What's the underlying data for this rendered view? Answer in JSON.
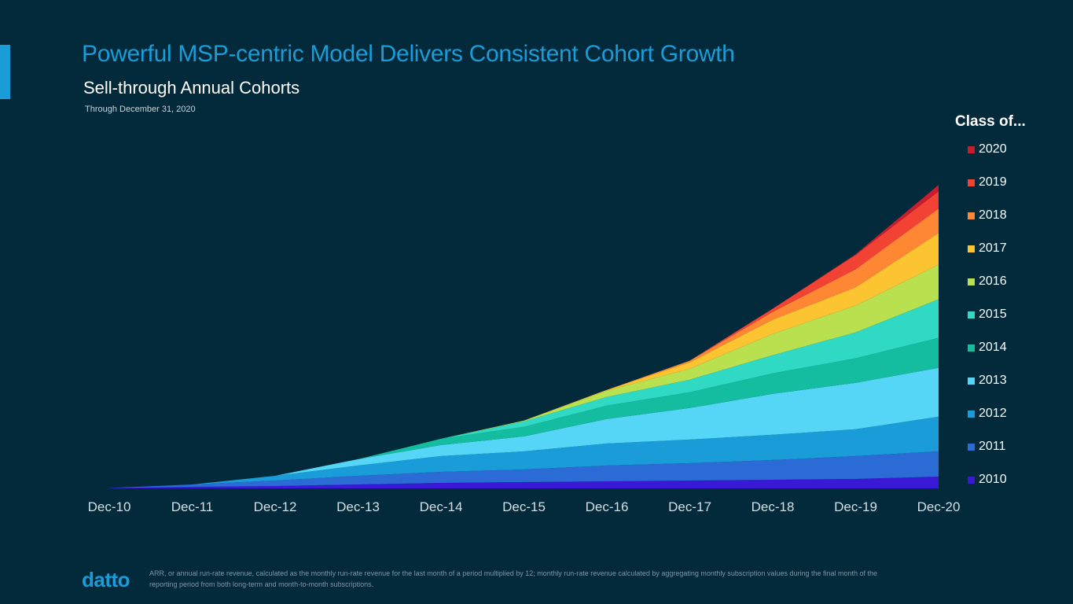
{
  "header": {
    "title": "Powerful MSP-centric Model Delivers Consistent Cohort Growth",
    "subtitle": "Sell-through Annual Cohorts",
    "as_of": "Through December 31, 2020"
  },
  "legend": {
    "title": "Class of...",
    "order": [
      "2020",
      "2019",
      "2018",
      "2017",
      "2016",
      "2015",
      "2014",
      "2013",
      "2012",
      "2011",
      "2010"
    ]
  },
  "colors": {
    "2010": "#3a19d6",
    "2011": "#2a6bd6",
    "2012": "#1a9cd8",
    "2013": "#56d6f7",
    "2014": "#14bd9f",
    "2015": "#2fd9c3",
    "2016": "#b8e04f",
    "2017": "#fdc432",
    "2018": "#fd8732",
    "2019": "#f24233",
    "2020": "#c91d2d",
    "background": "#022a3b",
    "accent": "#1a9cd8"
  },
  "chart_data": {
    "type": "area",
    "stacked": true,
    "categories": [
      "Dec-10",
      "Dec-11",
      "Dec-12",
      "Dec-13",
      "Dec-14",
      "Dec-15",
      "Dec-16",
      "Dec-17",
      "Dec-18",
      "Dec-19",
      "Dec-20"
    ],
    "ylim": [
      0,
      450
    ],
    "grid": false,
    "legend_position": "right",
    "series": [
      {
        "name": "2010",
        "values": [
          0.5,
          2,
          3,
          5,
          7,
          8,
          9,
          10,
          11,
          12,
          15
        ]
      },
      {
        "name": "2011",
        "values": [
          0,
          3,
          7,
          11,
          14,
          16,
          20,
          22,
          25,
          29,
          32
        ]
      },
      {
        "name": "2012",
        "values": [
          0,
          0,
          6,
          13,
          20,
          23,
          28,
          30,
          32,
          34,
          44
        ]
      },
      {
        "name": "2013",
        "values": [
          0,
          0,
          0,
          8,
          14,
          19,
          31,
          40,
          52,
          59,
          62
        ]
      },
      {
        "name": "2014",
        "values": [
          0,
          0,
          0,
          0,
          8,
          12,
          17,
          20,
          26,
          31,
          38
        ]
      },
      {
        "name": "2015",
        "values": [
          0,
          0,
          0,
          0,
          0,
          7,
          11,
          16,
          23,
          33,
          49
        ]
      },
      {
        "name": "2016",
        "values": [
          0,
          0,
          0,
          0,
          0,
          1,
          8,
          14,
          27,
          34,
          44
        ]
      },
      {
        "name": "2017",
        "values": [
          0,
          0,
          0,
          0,
          0,
          0,
          1,
          8,
          18,
          23,
          40
        ]
      },
      {
        "name": "2018",
        "values": [
          0,
          0,
          0,
          0,
          0,
          0,
          0,
          2,
          10,
          23,
          31
        ]
      },
      {
        "name": "2019",
        "values": [
          0,
          0,
          0,
          0,
          0,
          0,
          0,
          0,
          4,
          18,
          22
        ]
      },
      {
        "name": "2020",
        "values": [
          0,
          0,
          0,
          0,
          0,
          0,
          0,
          0,
          0,
          1,
          8
        ]
      }
    ]
  },
  "footer": {
    "logo": "datto",
    "footnote": "ARR, or annual run-rate revenue, calculated as the monthly run-rate revenue for the last month of a period multiplied by 12; monthly run-rate revenue calculated by aggregating monthly subscription values during the final month of the reporting period from both long-term and month-to-month subscriptions."
  }
}
